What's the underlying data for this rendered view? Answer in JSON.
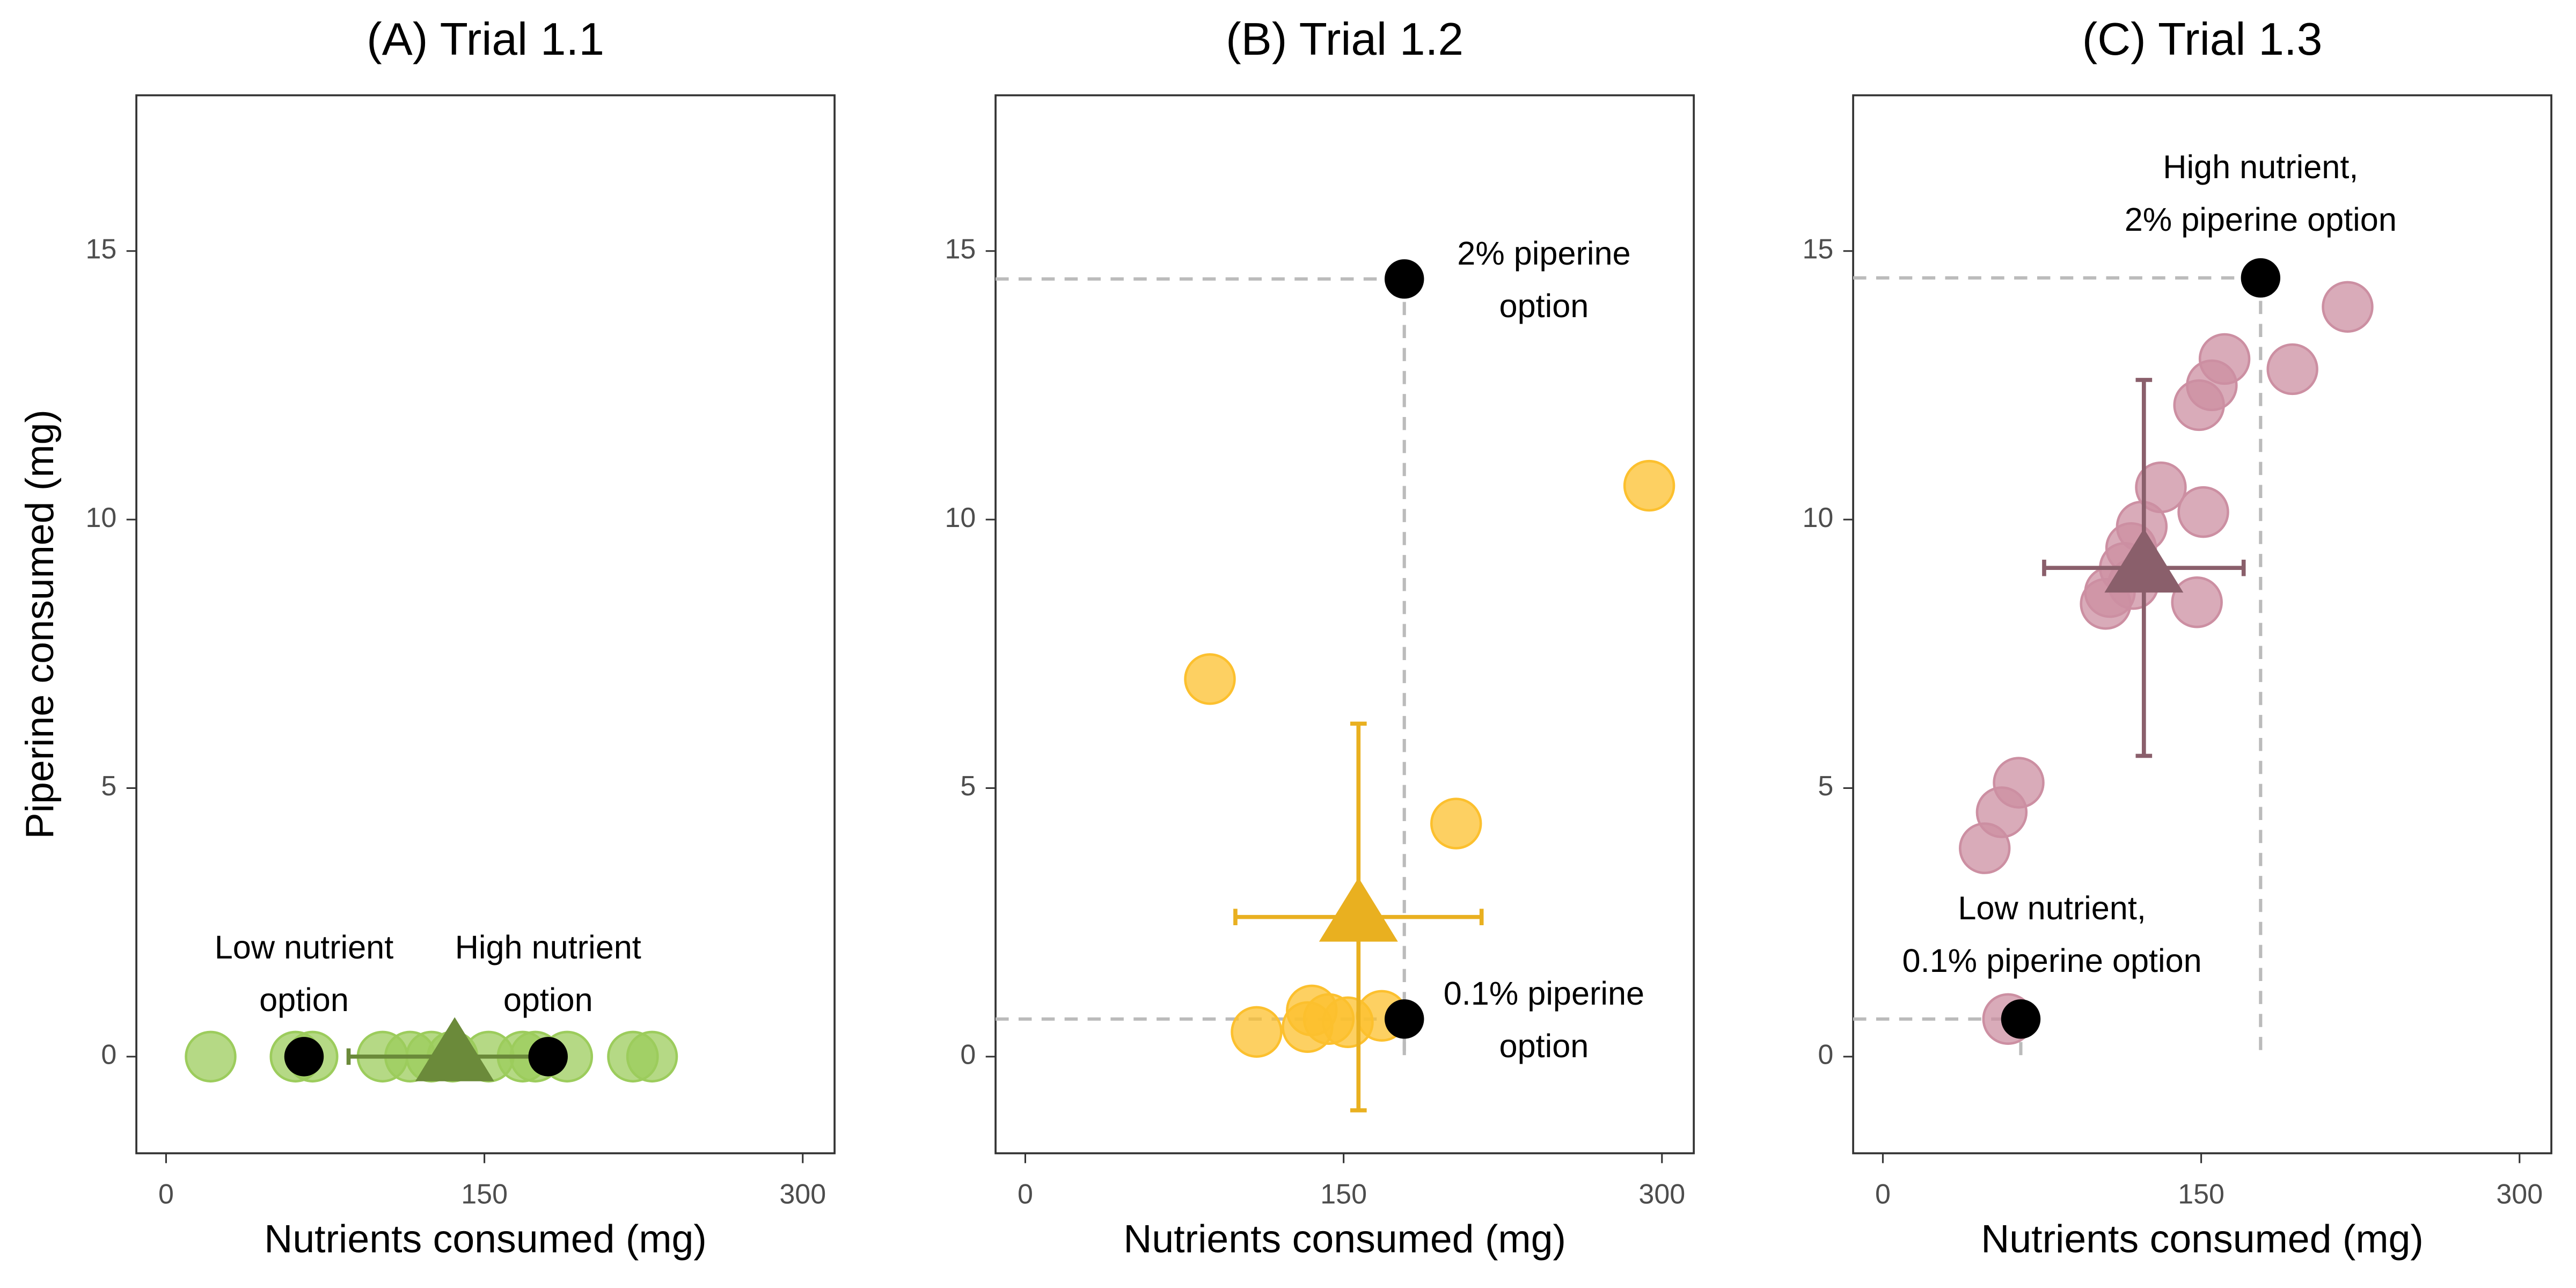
{
  "chart_data": [
    {
      "type": "scatter",
      "title": "(A) Trial 1.1",
      "x_label": "Nutrients consumed (mg)",
      "y_label": "Piperine consumed (mg)",
      "xlim": [
        -14,
        315
      ],
      "ylim": [
        -1.8,
        17.9
      ],
      "xticks": [
        0,
        150,
        300
      ],
      "yticks": [
        0,
        5,
        10,
        15
      ],
      "series": [
        {
          "color": "#9ccc5c",
          "x": [
            21,
            61,
            69,
            102,
            115,
            125,
            135,
            152,
            168,
            174,
            189,
            220,
            229
          ],
          "values": [
            0,
            0,
            0,
            0,
            0,
            0,
            0,
            0,
            0,
            0,
            0,
            0,
            0
          ]
        }
      ],
      "mean": {
        "color": "#6b8a3a",
        "x": 136,
        "y": 0,
        "xerr": 50,
        "yerr": 0
      },
      "options": [
        {
          "label": [
            "Low nutrient",
            "option"
          ],
          "x": 65,
          "y": 0
        },
        {
          "label": [
            "High nutrient",
            "option"
          ],
          "x": 180,
          "y": 0
        }
      ],
      "reference_lines": false
    },
    {
      "type": "scatter",
      "title": "(B) Trial 1.2",
      "x_label": "Nutrients consumed (mg)",
      "xlim": [
        -14,
        315
      ],
      "ylim": [
        -1.8,
        17.9
      ],
      "xticks": [
        0,
        150,
        300
      ],
      "yticks": [
        0,
        5,
        10,
        15
      ],
      "series": [
        {
          "color": "#fcc02e",
          "x": [
            87,
            294,
            203,
            109,
            133,
            143,
            152,
            168,
            135
          ],
          "values": [
            7.03,
            10.63,
            4.34,
            0.46,
            0.55,
            0.7,
            0.64,
            0.76,
            0.86
          ]
        }
      ],
      "mean": {
        "color": "#e9b020",
        "x": 157,
        "y": 2.6,
        "xerr": 58,
        "yerr": 3.6
      },
      "options": [
        {
          "label": [
            "2% piperine",
            "option"
          ],
          "x": 178.6,
          "y": 14.48
        },
        {
          "label": [
            "0.1% piperine",
            "option"
          ],
          "x": 178.6,
          "y": 0.7
        }
      ],
      "reference_lines": true
    },
    {
      "type": "scatter",
      "title": "(C) Trial 1.3",
      "x_label": "Nutrients consumed (mg)",
      "xlim": [
        -14,
        315
      ],
      "ylim": [
        -1.8,
        17.9
      ],
      "xticks": [
        0,
        150,
        300
      ],
      "yticks": [
        0,
        5,
        10,
        15
      ],
      "series": [
        {
          "color": "#cc8fa2",
          "x": [
            219,
            193,
            161,
            155,
            149,
            131,
            151,
            122,
            117,
            114,
            107,
            105,
            118,
            148,
            64,
            56,
            48,
            59
          ],
          "values": [
            13.96,
            12.8,
            12.99,
            12.5,
            12.13,
            10.6,
            10.14,
            9.87,
            9.47,
            9.1,
            8.65,
            8.43,
            8.8,
            8.46,
            5.1,
            4.55,
            3.88,
            0.7
          ]
        }
      ],
      "mean": {
        "color": "#8a5f6b",
        "x": 123,
        "y": 9.1,
        "xerr": 47,
        "yerr": 3.5
      },
      "options": [
        {
          "label": [
            "High nutrient,",
            "2% piperine option"
          ],
          "x": 178,
          "y": 14.5
        },
        {
          "label": [
            "Low nutrient,",
            "0.1% piperine option"
          ],
          "x": 65,
          "y": 0.7
        }
      ],
      "reference_lines": true
    }
  ]
}
